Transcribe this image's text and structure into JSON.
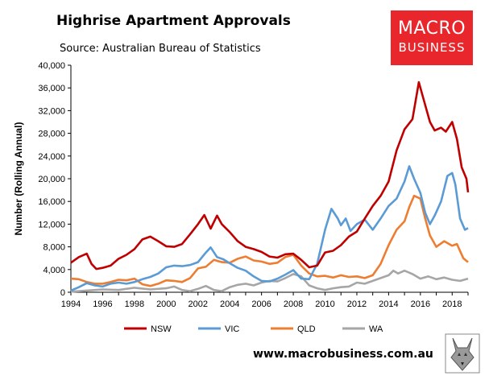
{
  "header": {
    "title": "Highrise Apartment Approvals",
    "subtitle": "Source: Australian Bureau of Statistics"
  },
  "logo": {
    "line1": "MACRO",
    "line2": "BUSINESS"
  },
  "footer": {
    "url": "www.macrobusiness.com.au"
  },
  "colors": {
    "NSW": "#c00000",
    "VIC": "#5b9bd5",
    "QLD": "#ed7d31",
    "WA": "#a6a6a6",
    "logo_bg": "#e8262b"
  },
  "chart_data": {
    "type": "line",
    "title": "Highrise Apartment Approvals",
    "subtitle": "Source: Australian Bureau of Statistics",
    "xlabel": "",
    "ylabel": "Number (Rolling Annual)",
    "xlim": [
      1994,
      2019
    ],
    "ylim": [
      0,
      40000
    ],
    "x_ticks": [
      "1994",
      "1996",
      "1998",
      "2000",
      "2002",
      "2004",
      "2006",
      "2008",
      "2010",
      "2012",
      "2014",
      "2016",
      "2018"
    ],
    "y_ticks": [
      "0",
      "4,000",
      "8,000",
      "12,000",
      "16,000",
      "20,000",
      "24,000",
      "28,000",
      "32,000",
      "36,000",
      "40,000"
    ],
    "grid": false,
    "legend_position": "bottom",
    "series": [
      {
        "name": "NSW",
        "color": "#c00000",
        "points": [
          [
            1994.0,
            5200
          ],
          [
            1994.5,
            6200
          ],
          [
            1995.0,
            6800
          ],
          [
            1995.3,
            5000
          ],
          [
            1995.6,
            4100
          ],
          [
            1996.0,
            4300
          ],
          [
            1996.5,
            4700
          ],
          [
            1997.0,
            5900
          ],
          [
            1997.5,
            6600
          ],
          [
            1998.0,
            7600
          ],
          [
            1998.5,
            9300
          ],
          [
            1999.0,
            9800
          ],
          [
            1999.5,
            9000
          ],
          [
            2000.0,
            8100
          ],
          [
            2000.5,
            8000
          ],
          [
            2001.0,
            8500
          ],
          [
            2001.5,
            10200
          ],
          [
            2002.0,
            12000
          ],
          [
            2002.4,
            13600
          ],
          [
            2002.8,
            11200
          ],
          [
            2003.2,
            13500
          ],
          [
            2003.5,
            12000
          ],
          [
            2004.0,
            10600
          ],
          [
            2004.5,
            9000
          ],
          [
            2005.0,
            8000
          ],
          [
            2005.5,
            7600
          ],
          [
            2006.0,
            7100
          ],
          [
            2006.5,
            6300
          ],
          [
            2007.0,
            6100
          ],
          [
            2007.5,
            6700
          ],
          [
            2008.0,
            6800
          ],
          [
            2008.5,
            5700
          ],
          [
            2009.0,
            4400
          ],
          [
            2009.5,
            4700
          ],
          [
            2010.0,
            7000
          ],
          [
            2010.5,
            7300
          ],
          [
            2011.0,
            8300
          ],
          [
            2011.5,
            9800
          ],
          [
            2012.0,
            10700
          ],
          [
            2012.5,
            13000
          ],
          [
            2013.0,
            15200
          ],
          [
            2013.5,
            17000
          ],
          [
            2014.0,
            19500
          ],
          [
            2014.5,
            25000
          ],
          [
            2015.0,
            28700
          ],
          [
            2015.5,
            30500
          ],
          [
            2015.9,
            37000
          ],
          [
            2016.2,
            34000
          ],
          [
            2016.6,
            30000
          ],
          [
            2016.9,
            28500
          ],
          [
            2017.3,
            29000
          ],
          [
            2017.6,
            28300
          ],
          [
            2018.0,
            30000
          ],
          [
            2018.3,
            27000
          ],
          [
            2018.6,
            22000
          ],
          [
            2018.9,
            20000
          ],
          [
            2019.0,
            17600
          ]
        ]
      },
      {
        "name": "VIC",
        "color": "#5b9bd5",
        "points": [
          [
            1994.0,
            300
          ],
          [
            1994.5,
            900
          ],
          [
            1995.0,
            1600
          ],
          [
            1995.5,
            1200
          ],
          [
            1996.0,
            1000
          ],
          [
            1996.5,
            1500
          ],
          [
            1997.0,
            1700
          ],
          [
            1997.5,
            1500
          ],
          [
            1998.0,
            1800
          ],
          [
            1998.5,
            2300
          ],
          [
            1999.0,
            2700
          ],
          [
            1999.5,
            3300
          ],
          [
            2000.0,
            4400
          ],
          [
            2000.5,
            4700
          ],
          [
            2001.0,
            4600
          ],
          [
            2001.5,
            4800
          ],
          [
            2002.0,
            5300
          ],
          [
            2002.5,
            7000
          ],
          [
            2002.8,
            7900
          ],
          [
            2003.2,
            6200
          ],
          [
            2003.6,
            5800
          ],
          [
            2004.0,
            5100
          ],
          [
            2004.5,
            4300
          ],
          [
            2005.0,
            3800
          ],
          [
            2005.5,
            2800
          ],
          [
            2006.0,
            2000
          ],
          [
            2006.5,
            1900
          ],
          [
            2007.0,
            2400
          ],
          [
            2007.5,
            3100
          ],
          [
            2008.0,
            3900
          ],
          [
            2008.5,
            2400
          ],
          [
            2009.0,
            2300
          ],
          [
            2009.5,
            5000
          ],
          [
            2010.0,
            11000
          ],
          [
            2010.4,
            14700
          ],
          [
            2010.8,
            13000
          ],
          [
            2011.0,
            11800
          ],
          [
            2011.3,
            13000
          ],
          [
            2011.6,
            10800
          ],
          [
            2012.0,
            12000
          ],
          [
            2012.5,
            12800
          ],
          [
            2013.0,
            11000
          ],
          [
            2013.5,
            13000
          ],
          [
            2014.0,
            15200
          ],
          [
            2014.5,
            16500
          ],
          [
            2015.0,
            19500
          ],
          [
            2015.3,
            22200
          ],
          [
            2015.6,
            20000
          ],
          [
            2016.0,
            17500
          ],
          [
            2016.3,
            14000
          ],
          [
            2016.6,
            12000
          ],
          [
            2016.9,
            13500
          ],
          [
            2017.3,
            16000
          ],
          [
            2017.7,
            20500
          ],
          [
            2018.0,
            21000
          ],
          [
            2018.2,
            19000
          ],
          [
            2018.5,
            13000
          ],
          [
            2018.8,
            11000
          ],
          [
            2019.0,
            11300
          ]
        ]
      },
      {
        "name": "QLD",
        "color": "#ed7d31",
        "points": [
          [
            1994.0,
            2400
          ],
          [
            1994.5,
            2300
          ],
          [
            1995.0,
            1800
          ],
          [
            1995.5,
            1500
          ],
          [
            1996.0,
            1500
          ],
          [
            1996.5,
            1800
          ],
          [
            1997.0,
            2200
          ],
          [
            1997.5,
            2100
          ],
          [
            1998.0,
            2400
          ],
          [
            1998.5,
            1400
          ],
          [
            1999.0,
            1100
          ],
          [
            1999.5,
            1500
          ],
          [
            2000.0,
            2100
          ],
          [
            2000.5,
            2000
          ],
          [
            2001.0,
            1800
          ],
          [
            2001.5,
            2500
          ],
          [
            2002.0,
            4200
          ],
          [
            2002.5,
            4500
          ],
          [
            2003.0,
            5700
          ],
          [
            2003.5,
            5300
          ],
          [
            2004.0,
            5200
          ],
          [
            2004.5,
            5900
          ],
          [
            2005.0,
            6300
          ],
          [
            2005.5,
            5600
          ],
          [
            2006.0,
            5400
          ],
          [
            2006.5,
            5000
          ],
          [
            2007.0,
            5200
          ],
          [
            2007.5,
            6200
          ],
          [
            2008.0,
            6600
          ],
          [
            2008.5,
            4700
          ],
          [
            2009.0,
            3300
          ],
          [
            2009.5,
            2800
          ],
          [
            2010.0,
            2900
          ],
          [
            2010.5,
            2600
          ],
          [
            2011.0,
            3000
          ],
          [
            2011.5,
            2700
          ],
          [
            2012.0,
            2800
          ],
          [
            2012.5,
            2500
          ],
          [
            2013.0,
            3000
          ],
          [
            2013.5,
            5000
          ],
          [
            2014.0,
            8300
          ],
          [
            2014.5,
            11000
          ],
          [
            2015.0,
            12500
          ],
          [
            2015.3,
            15000
          ],
          [
            2015.6,
            17000
          ],
          [
            2016.0,
            16500
          ],
          [
            2016.3,
            13000
          ],
          [
            2016.6,
            10000
          ],
          [
            2017.0,
            8000
          ],
          [
            2017.5,
            9000
          ],
          [
            2018.0,
            8200
          ],
          [
            2018.3,
            8500
          ],
          [
            2018.7,
            6000
          ],
          [
            2019.0,
            5300
          ]
        ]
      },
      {
        "name": "WA",
        "color": "#a6a6a6",
        "points": [
          [
            1994.0,
            100
          ],
          [
            1995.0,
            300
          ],
          [
            1996.0,
            500
          ],
          [
            1997.0,
            400
          ],
          [
            1998.0,
            800
          ],
          [
            1999.0,
            500
          ],
          [
            2000.0,
            700
          ],
          [
            2000.5,
            1000
          ],
          [
            2001.0,
            400
          ],
          [
            2001.5,
            200
          ],
          [
            2002.0,
            600
          ],
          [
            2002.5,
            1100
          ],
          [
            2003.0,
            400
          ],
          [
            2003.5,
            200
          ],
          [
            2004.0,
            900
          ],
          [
            2004.5,
            1300
          ],
          [
            2005.0,
            1500
          ],
          [
            2005.5,
            1200
          ],
          [
            2006.0,
            1700
          ],
          [
            2006.5,
            2000
          ],
          [
            2007.0,
            1900
          ],
          [
            2007.5,
            2500
          ],
          [
            2008.0,
            3200
          ],
          [
            2008.5,
            2800
          ],
          [
            2009.0,
            1200
          ],
          [
            2009.5,
            700
          ],
          [
            2010.0,
            400
          ],
          [
            2010.5,
            700
          ],
          [
            2011.0,
            900
          ],
          [
            2011.5,
            1000
          ],
          [
            2012.0,
            1700
          ],
          [
            2012.5,
            1500
          ],
          [
            2013.0,
            2000
          ],
          [
            2013.5,
            2500
          ],
          [
            2014.0,
            3000
          ],
          [
            2014.3,
            3800
          ],
          [
            2014.6,
            3300
          ],
          [
            2015.0,
            3800
          ],
          [
            2015.5,
            3200
          ],
          [
            2016.0,
            2400
          ],
          [
            2016.5,
            2800
          ],
          [
            2017.0,
            2300
          ],
          [
            2017.5,
            2600
          ],
          [
            2018.0,
            2200
          ],
          [
            2018.5,
            2000
          ],
          [
            2019.0,
            2400
          ]
        ]
      }
    ]
  }
}
